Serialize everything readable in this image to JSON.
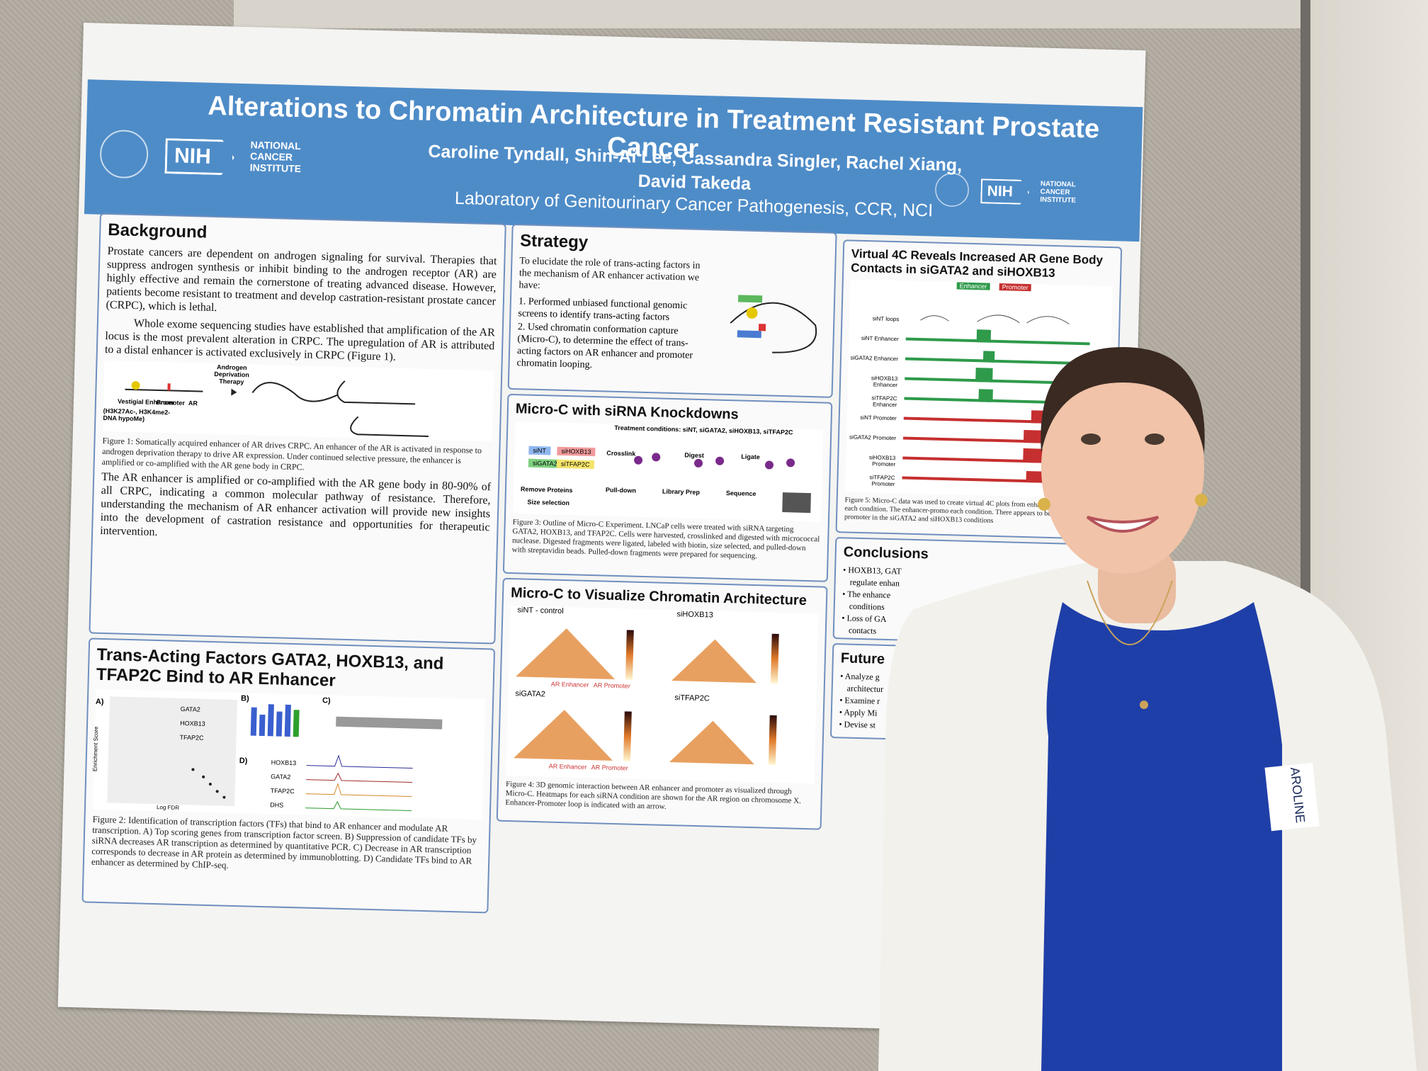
{
  "poster": {
    "title": "Alterations to Chromatin Architecture in Treatment Resistant Prostate Cancer",
    "authors_line1": "Caroline Tyndall, Shin-Ai Lee, Cassandra Singler, Rachel Xiang,",
    "authors_line2": "David Takeda",
    "lab": "Laboratory of Genitourinary Cancer Pathogenesis, CCR, NCI",
    "logo": {
      "nih": "NIH",
      "nci_line1": "NATIONAL",
      "nci_line2": "CANCER",
      "nci_line3": "INSTITUTE"
    }
  },
  "background": {
    "heading": "Background",
    "p1": "Prostate cancers are dependent on androgen signaling for survival. Therapies that suppress androgen synthesis or inhibit binding to the androgen receptor (AR) are highly effective and remain the cornerstone of treating advanced disease. However, patients become resistant to treatment and develop castration-resistant prostate cancer (CRPC), which is lethal.",
    "p2": "Whole exome sequencing studies have established that amplification of the AR locus is the most prevalent alteration in CRPC. The upregulation of AR is attributed to a distal enhancer is activated exclusively in CRPC (Figure 1).",
    "fig_labels": [
      "Androgen Deprivation Therapy",
      "Vestigial Enhancer",
      "Promoter",
      "AR",
      "(H3K27Ac-, H3K4me2- DNA hypoMe)"
    ],
    "caption": "Figure 1: Somatically acquired enhancer of AR drives CRPC. An enhancer of the AR is activated in response to androgen deprivation therapy to drive AR expression. Under continued selective pressure, the enhancer is amplified or co-amplified with the AR gene body in CRPC.",
    "p3": "The AR enhancer is amplified or co-amplified with the AR gene body in 80-90% of all CRPC, indicating a common molecular pathway of resistance. Therefore, understanding the mechanism of AR enhancer activation will provide new insights into the development of castration resistance and opportunities for therapeutic intervention."
  },
  "transacting": {
    "heading": "Trans-Acting Factors GATA2, HOXB13, and TFAP2C Bind to AR Enhancer",
    "panel_labels": [
      "A)",
      "B)",
      "C)",
      "D)"
    ],
    "genes": [
      "GATA2",
      "HOXB13",
      "TFAP2C"
    ],
    "chip_tracks": [
      "HOXB13",
      "GATA2",
      "TFAP2C",
      "DHS"
    ],
    "axis_y": "Enrichment Score",
    "axis_x": "Log FDR",
    "caption": "Figure 2: Identification of transcription factors (TFs) that bind to AR enhancer and modulate AR transcription. A) Top scoring genes from transcription factor screen. B) Suppression of candidate TFs by siRNA decreases AR transcription as determined by quantitative PCR. C) Decrease in AR transcription corresponds to decrease in AR protein as determined by immunoblotting. D) Candidate TFs bind to AR enhancer as determined by ChIP-seq."
  },
  "strategy": {
    "heading": "Strategy",
    "intro": "To elucidate the role of trans-acting factors in the mechanism of AR enhancer activation we have:",
    "items": [
      "Performed unbiased functional genomic screens to identify trans-acting factors",
      "Used chromatin conformation capture (Micro-C), to determine the effect of trans-acting factors on AR enhancer and promoter chromatin looping."
    ]
  },
  "microc": {
    "heading": "Micro-C with siRNA Knockdowns",
    "conditions": "Treatment conditions: siNT, siGATA2, siHOXB13, siTFAP2C",
    "steps": [
      "Crosslink",
      "Digest",
      "Ligate",
      "Remove Proteins",
      "Pull-down",
      "Library Prep",
      "Sequence",
      "Size selection"
    ],
    "tags": [
      "siNT",
      "siHOXB13",
      "siGATA2",
      "siTFAP2C"
    ],
    "caption": "Figure 3: Outline of Micro-C Experiment. LNCaP cells were treated with siRNA targeting GATA2, HOXB13, and TFAP2C. Cells were harvested, crosslinked and digested with micrococcal nuclease. Digested fragments were ligated, labeled with biotin, size selected, and pulled-down with streptavidin beads. Pulled-down fragments were prepared for sequencing."
  },
  "visualize": {
    "heading": "Micro-C to Visualize Chromatin Architecture",
    "maps": [
      "siNT - control",
      "siHOXB13",
      "siGATA2",
      "siTFAP2C"
    ],
    "axis_labels": [
      "AR Enhancer",
      "AR Promoter"
    ],
    "caption": "Figure 4: 3D genomic interaction between AR enhancer and promoter as visualized through Micro-C. Heatmaps for each siRNA condition are shown for the AR region on chromosome X. Enhancer-Promoter loop is indicated with an arrow."
  },
  "virtual4c": {
    "heading": "Virtual 4C Reveals Increased AR Gene Body Contacts in siGATA2 and siHOXB13",
    "legend": [
      "Enhancer",
      "Promoter"
    ],
    "tracks": [
      "siNT loops",
      "siNT Enhancer",
      "siGATA2 Enhancer",
      "siHOXB13 Enhancer",
      "siTFAP2C Enhancer",
      "siNT Promoter",
      "siGATA2 Promoter",
      "siHOXB13 Promoter",
      "siTFAP2C Promoter"
    ],
    "caption": "Figure 5: Micro-C data was used to create virtual 4C plots from enhancer and promoter for each condition. The enhancer-promo each condition. There appears to be increased 3D inter promoter in the siGATA2 and siHOXB13 conditions"
  },
  "conclusions": {
    "heading": "Conclusions",
    "items": [
      "HOXB13, GAT",
      "regulate enhan",
      "The enhance",
      "conditions",
      "Loss of GA",
      "contacts"
    ]
  },
  "future": {
    "heading": "Future",
    "items": [
      "Analyze g",
      "architectur",
      "Examine r",
      "Apply Mi",
      "Devise st"
    ]
  },
  "name_tag": "AROLINE",
  "colors": {
    "banner": "#4e8cc8",
    "panel_border": "#6f8fbf",
    "dress": "#1f3fa8",
    "cardigan": "#f2f1ec"
  }
}
